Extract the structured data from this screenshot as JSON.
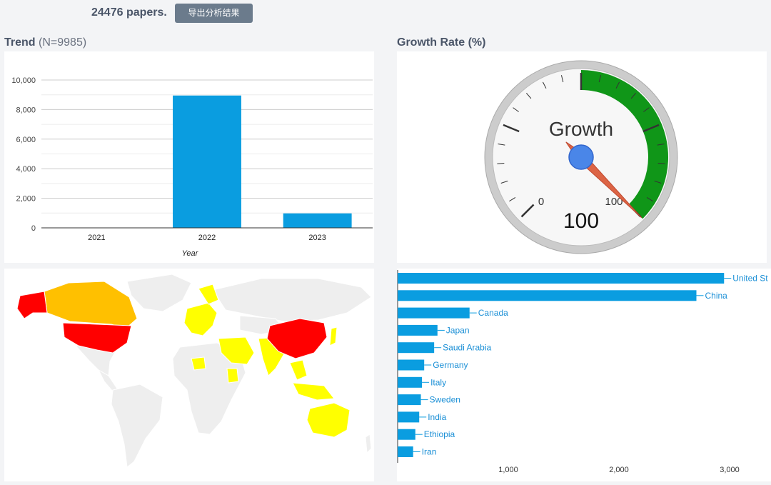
{
  "header": {
    "paper_count": "24476 papers.",
    "export_label": "导出分析结果"
  },
  "trend": {
    "title": "Trend",
    "subtitle": "(N=9985)"
  },
  "growth": {
    "title": "Growth Rate (%)",
    "gauge_label": "Growth",
    "gauge_value": "100",
    "scale_min": "0",
    "scale_max": "100"
  },
  "chart_data": [
    {
      "type": "bar",
      "categories": [
        "2021",
        "2022",
        "2023"
      ],
      "values": [
        0,
        8950,
        980
      ],
      "xlabel": "Year",
      "ylabel": "",
      "ylim": [
        0,
        10000
      ],
      "yticks": [
        "0",
        "2,000",
        "4,000",
        "6,000",
        "8,000",
        "10,000"
      ],
      "grid": true,
      "color": "#0a9de0"
    },
    {
      "type": "gauge",
      "value": 100,
      "min": 0,
      "max": 100,
      "band_color": "#109618",
      "needle_color": "#dc6445"
    },
    {
      "type": "map",
      "highlighted": [
        {
          "name": "United States",
          "color": "#ff0000"
        },
        {
          "name": "China",
          "color": "#ff0000"
        },
        {
          "name": "Canada",
          "color": "#ffc000"
        },
        {
          "name": "Australia",
          "color": "#ffff00"
        },
        {
          "name": "India",
          "color": "#ffff00"
        },
        {
          "name": "Saudi Arabia",
          "color": "#ffff00"
        },
        {
          "name": "Europe",
          "color": "#ffff00"
        },
        {
          "name": "Africa",
          "color": "#ffff00"
        },
        {
          "name": "Southeast Asia",
          "color": "#ffff00"
        }
      ]
    },
    {
      "type": "bar",
      "orientation": "horizontal",
      "categories": [
        "United St",
        "China",
        "Canada",
        "Japan",
        "Saudi Arabia",
        "Germany",
        "Italy",
        "Sweden",
        "India",
        "Ethiopia",
        "Iran"
      ],
      "values": [
        2950,
        2700,
        650,
        360,
        330,
        240,
        220,
        210,
        195,
        160,
        140
      ],
      "xlim": [
        0,
        3200
      ],
      "xticks": [
        "1,000",
        "2,000",
        "3,000"
      ],
      "color": "#0a9de0"
    }
  ]
}
